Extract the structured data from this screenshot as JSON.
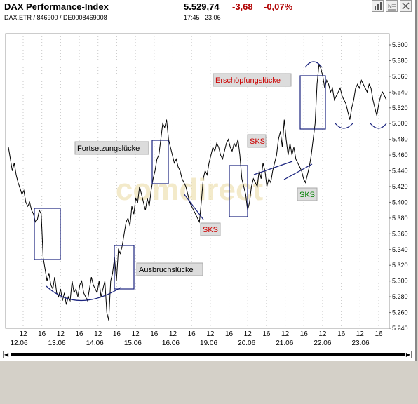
{
  "header": {
    "title": "DAX Performance-Index",
    "subtitle": "DAX.ETR / 846900 / DE0008469008",
    "price": "5.529,74",
    "change": "-3,68",
    "change_pct": "-0,07%",
    "time": "17:45",
    "date": "23.06"
  },
  "toolbar": {
    "buttons": [
      "bar-chart-icon",
      "news-icon",
      "close-icon"
    ]
  },
  "watermark": "comdirect",
  "colors": {
    "price_line": "#000000",
    "annotation_box": "#1a237e",
    "label_red": "#cc0000",
    "label_green": "#008000",
    "label_bg": "#dcdcdc"
  },
  "chart_data": {
    "type": "line",
    "title": "",
    "xlabel": "",
    "ylabel": "",
    "ylim": [
      5240,
      5600
    ],
    "y_ticks": [
      "5.600",
      "5.580",
      "5.560",
      "5.540",
      "5.520",
      "5.500",
      "5.480",
      "5.460",
      "5.440",
      "5.420",
      "5.400",
      "5.380",
      "5.360",
      "5.340",
      "5.320",
      "5.300",
      "5.280",
      "5.260",
      "5.240"
    ],
    "x_hour_ticks": [
      "12",
      "16",
      "12",
      "16",
      "12",
      "16",
      "12",
      "16",
      "12",
      "16",
      "12",
      "16",
      "12",
      "16",
      "12",
      "16",
      "12",
      "16",
      "12",
      "16"
    ],
    "x_date_ticks": [
      "12.06",
      "13.06",
      "14.06",
      "15.06",
      "16.06",
      "19.06",
      "20.06",
      "21.06",
      "22.06",
      "23.06"
    ],
    "grid": true,
    "series": [
      {
        "values": [
          5470,
          5455,
          5440,
          5450,
          5435,
          5425,
          5418,
          5410,
          5415,
          5400,
          5395,
          5400,
          5390,
          5385,
          5375,
          5378,
          5390,
          5385,
          5330,
          5315,
          5300,
          5310,
          5295,
          5290,
          5305,
          5285,
          5280,
          5290,
          5275,
          5285,
          5270,
          5280,
          5275,
          5300,
          5285,
          5290,
          5280,
          5295,
          5300,
          5285,
          5280,
          5275,
          5290,
          5305,
          5295,
          5290,
          5285,
          5300,
          5280,
          5290,
          5300,
          5260,
          5250,
          5300,
          5310,
          5330,
          5300,
          5340,
          5335,
          5345,
          5360,
          5375,
          5380,
          5370,
          5395,
          5385,
          5405,
          5400,
          5420,
          5410,
          5400,
          5390,
          5405,
          5395,
          5415,
          5430,
          5440,
          5455,
          5460,
          5480,
          5500,
          5495,
          5505,
          5480,
          5470,
          5460,
          5450,
          5455,
          5445,
          5440,
          5430,
          5425,
          5420,
          5410,
          5400,
          5395,
          5390,
          5385,
          5380,
          5375,
          5400,
          5430,
          5440,
          5435,
          5450,
          5460,
          5470,
          5465,
          5475,
          5470,
          5460,
          5455,
          5465,
          5475,
          5480,
          5470,
          5465,
          5475,
          5470,
          5480,
          5460,
          5430,
          5420,
          5410,
          5390,
          5400,
          5420,
          5430,
          5425,
          5420,
          5440,
          5430,
          5450,
          5440,
          5420,
          5430,
          5425,
          5440,
          5450,
          5460,
          5480,
          5490,
          5470,
          5505,
          5480,
          5460,
          5475,
          5460,
          5470,
          5455,
          5450,
          5445,
          5440,
          5430,
          5425,
          5435,
          5445,
          5460,
          5480,
          5500,
          5550,
          5575,
          5570,
          5560,
          5545,
          5555,
          5550,
          5540,
          5545,
          5530,
          5535,
          5540,
          5545,
          5535,
          5530,
          5525,
          5515,
          5505,
          5520,
          5530,
          5545,
          5550,
          5545,
          5555,
          5550,
          5545,
          5540,
          5550,
          5545,
          5530,
          5520,
          5510,
          5525,
          5535,
          5540,
          5535,
          5530
        ]
      }
    ],
    "annotations": [
      {
        "text": "Fortsetzungslücke",
        "color": "#000000"
      },
      {
        "text": "Ausbruchslücke",
        "color": "#000000"
      },
      {
        "text": "Erschöpfungslücke",
        "color": "#cc0000"
      },
      {
        "text": "SKS",
        "color": "#cc0000"
      },
      {
        "text": "SKS",
        "color": "#cc0000"
      },
      {
        "text": "SKS",
        "color": "#008000"
      }
    ]
  }
}
